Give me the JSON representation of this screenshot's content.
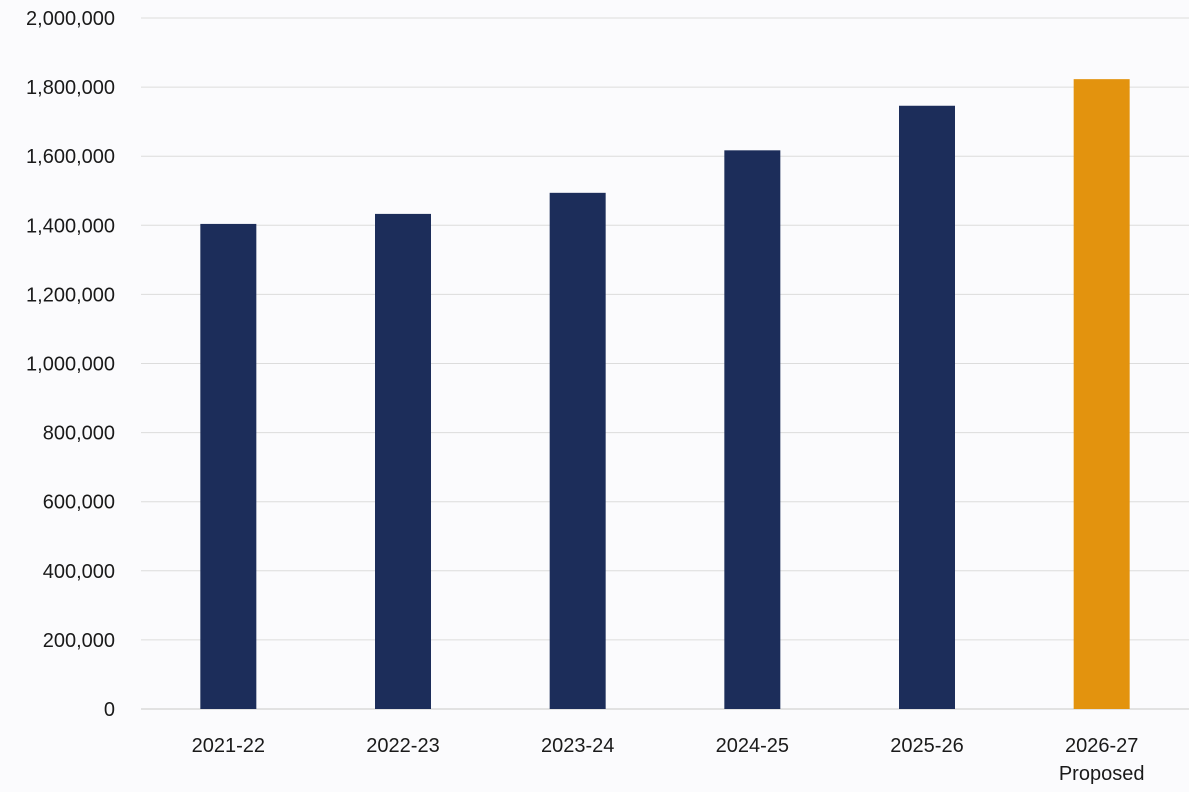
{
  "chart_data": {
    "type": "bar",
    "title": "",
    "xlabel": "",
    "ylabel": "",
    "categories": [
      [
        "2021-22"
      ],
      [
        "2022-23"
      ],
      [
        "2023-24"
      ],
      [
        "2024-25"
      ],
      [
        "2025-26"
      ],
      [
        "2026-27",
        "Proposed"
      ]
    ],
    "values": [
      1404000,
      1433000,
      1494000,
      1617000,
      1746000,
      1823000
    ],
    "bar_colors": [
      "#1c2d5a",
      "#1c2d5a",
      "#1c2d5a",
      "#1c2d5a",
      "#1c2d5a",
      "#e3930e"
    ],
    "ylim": [
      0,
      2000000
    ],
    "yticks": [
      0,
      200000,
      400000,
      600000,
      800000,
      1000000,
      1200000,
      1400000,
      1600000,
      1800000,
      2000000
    ],
    "ytick_labels": [
      "0",
      "200,000",
      "400,000",
      "600,000",
      "800,000",
      "1,000,000",
      "1,200,000",
      "1,400,000",
      "1,600,000",
      "1,800,000",
      "2,000,000"
    ],
    "grid": true,
    "legend": "none"
  }
}
